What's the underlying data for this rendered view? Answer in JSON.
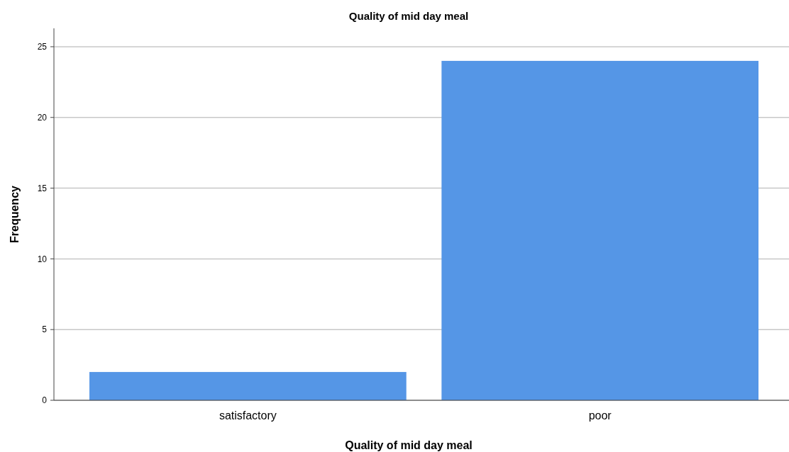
{
  "chart_data": {
    "type": "bar",
    "title": "Quality of mid day meal",
    "xlabel": "Quality of mid day meal",
    "ylabel": "Frequency",
    "categories": [
      "satisfactory",
      "poor"
    ],
    "values": [
      2,
      24
    ],
    "color": "#5596e6",
    "ylim": [
      0,
      26.3
    ],
    "yticks": [
      0,
      5,
      10,
      15,
      20,
      25
    ],
    "grid": "y"
  }
}
